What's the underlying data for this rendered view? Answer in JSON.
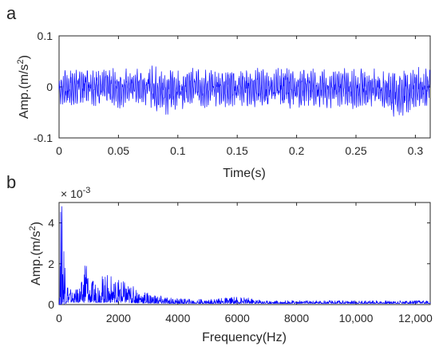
{
  "chart_data": [
    {
      "panel_label": "a",
      "type": "line",
      "xlabel": "Time(s)",
      "ylabel_main": "Amp.(m/s",
      "ylabel_sup": "2",
      "ylabel_tail": ")",
      "xlim": [
        0,
        0.3125
      ],
      "ylim": [
        -0.1,
        0.1
      ],
      "xticks": [
        0,
        0.05,
        0.1,
        0.15,
        0.2,
        0.25,
        0.3
      ],
      "xtick_labels": [
        "0",
        "0.05",
        "0.1",
        "0.15",
        "0.2",
        "0.25",
        "0.3"
      ],
      "yticks": [
        -0.1,
        0,
        0.1
      ],
      "ytick_labels": [
        "-0.1",
        "0",
        "0.1"
      ],
      "color": "#0000ff",
      "series": [
        {
          "x": [
            0,
            0.0125,
            0.025,
            0.0375,
            0.05,
            0.0625,
            0.075,
            0.0875,
            0.1,
            0.1125,
            0.125,
            0.1375,
            0.15,
            0.1625,
            0.175,
            0.1875,
            0.2,
            0.2125,
            0.225,
            0.2375,
            0.25,
            0.2625,
            0.275,
            0.2875,
            0.3,
            0.3125
          ],
          "upper": [
            0.03,
            0.04,
            0.045,
            0.035,
            0.04,
            0.035,
            0.045,
            0.04,
            0.035,
            0.04,
            0.035,
            0.04,
            0.035,
            0.04,
            0.035,
            0.04,
            0.035,
            0.04,
            0.035,
            0.04,
            0.035,
            0.04,
            0.035,
            0.045,
            0.04,
            0.035
          ],
          "lower": [
            -0.04,
            -0.045,
            -0.035,
            -0.04,
            -0.045,
            -0.035,
            -0.04,
            -0.06,
            -0.045,
            -0.04,
            -0.045,
            -0.04,
            -0.045,
            -0.04,
            -0.045,
            -0.04,
            -0.045,
            -0.04,
            -0.045,
            -0.04,
            -0.045,
            -0.04,
            -0.05,
            -0.075,
            -0.045,
            -0.04
          ]
        }
      ]
    },
    {
      "panel_label": "b",
      "type": "line",
      "xlabel": "Frequency(Hz)",
      "ylabel_main": "Amp.(m/s",
      "ylabel_sup": "2",
      "ylabel_tail": ")",
      "exponent_label": "× 10",
      "exponent_power": "-3",
      "xlim": [
        0,
        12500
      ],
      "ylim": [
        0,
        0.005
      ],
      "xticks": [
        0,
        2000,
        4000,
        6000,
        8000,
        10000,
        12000
      ],
      "xtick_labels": [
        "0",
        "2000",
        "4000",
        "6000",
        "8000",
        "10,000",
        "12,000"
      ],
      "yticks": [
        0,
        0.002,
        0.004
      ],
      "ytick_labels": [
        "0",
        "2",
        "4"
      ],
      "color": "#0000ff",
      "series": [
        {
          "x": [
            0,
            50,
            100,
            150,
            300,
            500,
            800,
            900,
            1000,
            1200,
            1500,
            1800,
            2000,
            2500,
            3000,
            3500,
            4000,
            5000,
            6000,
            6500,
            7000,
            8000,
            9000,
            10000,
            11000,
            12000,
            12500
          ],
          "upper": [
            0.0,
            0.005,
            0.005,
            0.0042,
            0.001,
            0.0006,
            0.0012,
            0.0033,
            0.0011,
            0.0012,
            0.0015,
            0.0014,
            0.0013,
            0.0009,
            0.0006,
            0.0004,
            0.0003,
            0.00025,
            0.0004,
            0.0003,
            0.0002,
            0.0002,
            0.0002,
            0.0002,
            0.0002,
            0.0002,
            0.0002
          ],
          "lower": [
            0.0,
            0.0,
            0.0,
            0.0,
            0.0001,
            0.0001,
            0.0001,
            0.0001,
            0.0001,
            0.0001,
            0.0001,
            0.0001,
            0.0001,
            8e-05,
            6e-05,
            5e-05,
            5e-05,
            5e-05,
            5e-05,
            5e-05,
            5e-05,
            5e-05,
            5e-05,
            5e-05,
            5e-05,
            5e-05,
            5e-05
          ]
        }
      ]
    }
  ]
}
